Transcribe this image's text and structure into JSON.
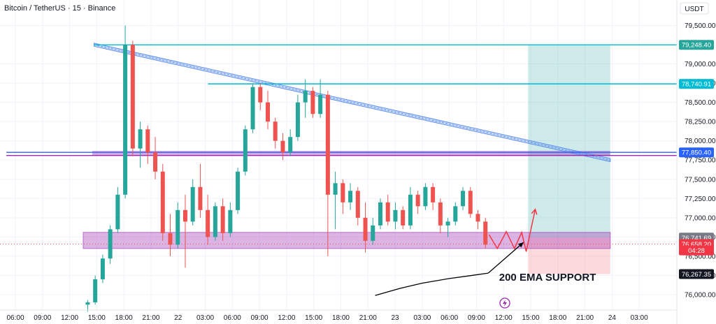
{
  "header": {
    "title": "Bitcoin / TetherUS · 15 · Binance",
    "currency": "USDT"
  },
  "colors": {
    "up": "#26a69a",
    "down": "#ef5350",
    "grid": "#f0f3fa",
    "trendline": "#5b8def",
    "resistance": "#00bcd4",
    "ema": "#2962ff",
    "support_zone": "#9c27b0",
    "target_zone": "#26a69a",
    "stop_zone": "#f23645",
    "arrow": "#000000",
    "projection": "#f23645"
  },
  "chart_data": {
    "type": "candlestick",
    "ylim": [
      75800,
      79650
    ],
    "y_ticks": [
      "79,500.00",
      "79,000.00",
      "78,750.00",
      "78,500.00",
      "78,250.00",
      "78,000.00",
      "77,750.00",
      "77,500.00",
      "77,250.00",
      "77,000.00",
      "76,750.00",
      "76,500.00",
      "76,250.00",
      "76,000.00"
    ],
    "x_ticks": [
      "06:00",
      "09:00",
      "12:00",
      "15:00",
      "18:00",
      "21:00",
      "22",
      "03:00",
      "06:00",
      "09:00",
      "12:00",
      "15:00",
      "18:00",
      "21:00",
      "23",
      "03:00",
      "06:00",
      "09:00",
      "12:00",
      "15:00",
      "18:00",
      "21:00",
      "24",
      "03:00"
    ],
    "x_tick_values": [
      0,
      3,
      6,
      9,
      12,
      15,
      18,
      21,
      24,
      27,
      30,
      33,
      36,
      39,
      42,
      45,
      48,
      51,
      54,
      57,
      60,
      63,
      66,
      69
    ],
    "price_tags": [
      {
        "label": "79,248.40",
        "value": 79248.4,
        "color": "#26a69a"
      },
      {
        "label": "78,740.91",
        "value": 78740.91,
        "color": "#00bcd4"
      },
      {
        "label": "77,850.40",
        "value": 77850.4,
        "color": "#2962ff"
      },
      {
        "label": "76,741.69",
        "value": 76741.69,
        "color": "#787b86"
      },
      {
        "label": "76,658.20",
        "value": 76658.2,
        "color": "#f23645"
      },
      {
        "label": "04:28",
        "value": 76575,
        "color": "#f23645"
      },
      {
        "label": "76,267.35",
        "value": 76267.35,
        "color": "#131722"
      }
    ],
    "horizontal_lines": [
      {
        "name": "target-level",
        "value": 79248.4,
        "x_from": 8.7,
        "color": "#00bcd4"
      },
      {
        "name": "resistance-level",
        "value": 78740.91,
        "x_from": 21.3,
        "color": "#00bcd4"
      },
      {
        "name": "ema-line",
        "value": 77850.4,
        "x_from": -1,
        "color": "#2962ff"
      },
      {
        "name": "purple-line",
        "value": 77810,
        "x_from": -1,
        "color": "#9c27b0"
      }
    ],
    "current_price": 76658.2,
    "trendline": {
      "x1": 8.7,
      "y1": 79250,
      "x2": 65.8,
      "y2": 77750,
      "band": 40
    },
    "support_zone": {
      "x1": 7.5,
      "x2": 65.8,
      "y_top": 76810,
      "y_bottom": 76600
    },
    "ema_band": {
      "x1": 8.5,
      "x2": 65.8,
      "y_top": 77870,
      "y_bottom": 77815
    },
    "target_zone": {
      "x1": 56.7,
      "x2": 65.8,
      "y_top": 79248.4,
      "y_bottom": 76741.69
    },
    "stop_zone": {
      "x1": 56.7,
      "x2": 65.8,
      "y_top": 76741.69,
      "y_bottom": 76267.35
    },
    "projection_path": [
      [
        52.4,
        76780
      ],
      [
        53.3,
        76600
      ],
      [
        54.3,
        76820
      ],
      [
        55.2,
        76600
      ],
      [
        56.0,
        76810
      ],
      [
        56.5,
        76560
      ],
      [
        57.5,
        77110
      ]
    ],
    "annotation": {
      "text": "200 EMA SUPPORT",
      "x": 53.5,
      "y": 76180
    },
    "arrow_path": [
      [
        39.8,
        75990
      ],
      [
        42.5,
        76080
      ],
      [
        45,
        76150
      ],
      [
        48,
        76210
      ],
      [
        50.5,
        76250
      ],
      [
        52.3,
        76280
      ]
    ],
    "arrow_to": [
      56.2,
      76680
    ],
    "candles": [
      {
        "o": 75870,
        "h": 75930,
        "l": 75780,
        "c": 75900
      },
      {
        "o": 75900,
        "h": 76250,
        "l": 75870,
        "c": 76200
      },
      {
        "o": 76200,
        "h": 76520,
        "l": 76150,
        "c": 76470
      },
      {
        "o": 76470,
        "h": 76900,
        "l": 76400,
        "c": 76850
      },
      {
        "o": 76850,
        "h": 77400,
        "l": 76800,
        "c": 77300
      },
      {
        "o": 77300,
        "h": 79500,
        "l": 77250,
        "c": 79250
      },
      {
        "o": 79250,
        "h": 79300,
        "l": 77800,
        "c": 77900
      },
      {
        "o": 77900,
        "h": 78250,
        "l": 77650,
        "c": 78150
      },
      {
        "o": 78150,
        "h": 78200,
        "l": 77700,
        "c": 77850
      },
      {
        "o": 77850,
        "h": 78050,
        "l": 77500,
        "c": 77600
      },
      {
        "o": 77600,
        "h": 77700,
        "l": 76700,
        "c": 76800
      },
      {
        "o": 76800,
        "h": 77050,
        "l": 76500,
        "c": 76650
      },
      {
        "o": 76650,
        "h": 77200,
        "l": 76600,
        "c": 77100
      },
      {
        "o": 77100,
        "h": 77300,
        "l": 76350,
        "c": 76950
      },
      {
        "o": 76950,
        "h": 77500,
        "l": 76900,
        "c": 77400
      },
      {
        "o": 77400,
        "h": 77700,
        "l": 77000,
        "c": 77100
      },
      {
        "o": 77100,
        "h": 77300,
        "l": 76650,
        "c": 76750
      },
      {
        "o": 76750,
        "h": 77200,
        "l": 76700,
        "c": 77150
      },
      {
        "o": 77150,
        "h": 77250,
        "l": 76700,
        "c": 76800
      },
      {
        "o": 76800,
        "h": 77200,
        "l": 76750,
        "c": 77100
      },
      {
        "o": 77100,
        "h": 77650,
        "l": 77050,
        "c": 77600
      },
      {
        "o": 77600,
        "h": 78200,
        "l": 77550,
        "c": 78150
      },
      {
        "o": 78150,
        "h": 78750,
        "l": 78100,
        "c": 78700
      },
      {
        "o": 78700,
        "h": 78750,
        "l": 78400,
        "c": 78500
      },
      {
        "o": 78500,
        "h": 78650,
        "l": 78150,
        "c": 78250
      },
      {
        "o": 78250,
        "h": 78300,
        "l": 77900,
        "c": 78000
      },
      {
        "o": 78000,
        "h": 78100,
        "l": 77750,
        "c": 77850
      },
      {
        "o": 77850,
        "h": 78150,
        "l": 77800,
        "c": 78050
      },
      {
        "o": 78050,
        "h": 78600,
        "l": 78000,
        "c": 78500
      },
      {
        "o": 78500,
        "h": 78800,
        "l": 78300,
        "c": 78650
      },
      {
        "o": 78650,
        "h": 78700,
        "l": 78300,
        "c": 78350
      },
      {
        "o": 78350,
        "h": 78800,
        "l": 78300,
        "c": 78600
      },
      {
        "o": 78600,
        "h": 78650,
        "l": 76500,
        "c": 77300
      },
      {
        "o": 77300,
        "h": 77600,
        "l": 76850,
        "c": 77450
      },
      {
        "o": 77450,
        "h": 77500,
        "l": 77050,
        "c": 77200
      },
      {
        "o": 77200,
        "h": 77450,
        "l": 77100,
        "c": 77350
      },
      {
        "o": 77350,
        "h": 77400,
        "l": 76900,
        "c": 77000
      },
      {
        "o": 77000,
        "h": 77200,
        "l": 76550,
        "c": 76700
      },
      {
        "o": 76700,
        "h": 77000,
        "l": 76650,
        "c": 76900
      },
      {
        "o": 76900,
        "h": 77250,
        "l": 76850,
        "c": 77200
      },
      {
        "o": 77200,
        "h": 77300,
        "l": 76900,
        "c": 76950
      },
      {
        "o": 76950,
        "h": 77200,
        "l": 76850,
        "c": 77100
      },
      {
        "o": 77100,
        "h": 77150,
        "l": 76850,
        "c": 76900
      },
      {
        "o": 76900,
        "h": 77400,
        "l": 76850,
        "c": 77300
      },
      {
        "o": 77300,
        "h": 77350,
        "l": 77050,
        "c": 77150
      },
      {
        "o": 77150,
        "h": 77450,
        "l": 77100,
        "c": 77400
      },
      {
        "o": 77400,
        "h": 77450,
        "l": 77100,
        "c": 77200
      },
      {
        "o": 77200,
        "h": 77250,
        "l": 76800,
        "c": 76900
      },
      {
        "o": 76900,
        "h": 77000,
        "l": 76750,
        "c": 76950
      },
      {
        "o": 76950,
        "h": 77200,
        "l": 76900,
        "c": 77150
      },
      {
        "o": 77150,
        "h": 77400,
        "l": 77100,
        "c": 77350
      },
      {
        "o": 77350,
        "h": 77400,
        "l": 77000,
        "c": 77050
      },
      {
        "o": 77050,
        "h": 77100,
        "l": 76850,
        "c": 76950
      },
      {
        "o": 76950,
        "h": 77000,
        "l": 76600,
        "c": 76650
      }
    ]
  }
}
